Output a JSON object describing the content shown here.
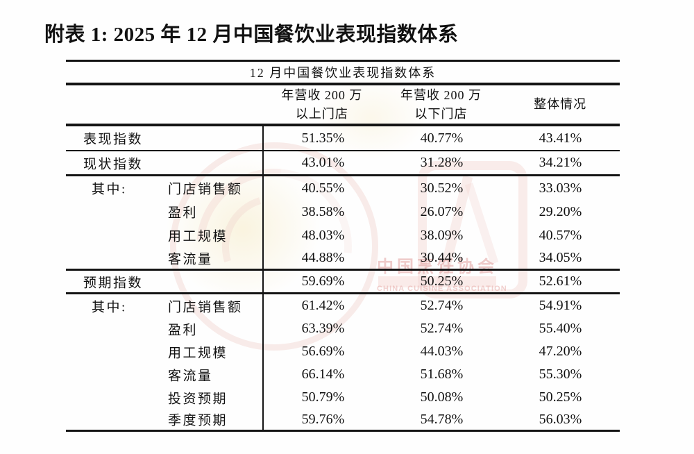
{
  "page": {
    "title": "附表 1: 2025 年 12 月中国餐饮业表现指数体系"
  },
  "watermark": {
    "cn": "中国烹饪协会",
    "en": "CHINA CUISINE ASSOCIATION",
    "color": "#e7a8a5"
  },
  "table": {
    "caption": "12 月中国餐饮业表现指数体系",
    "headers": [
      {
        "line1": "年营收 200 万",
        "line2": "以上门店"
      },
      {
        "line1": "年营收 200 万",
        "line2": "以下门店"
      },
      {
        "line1": "整体情况",
        "line2": ""
      }
    ],
    "rows": [
      {
        "main": "表现指数",
        "sub": "",
        "values": [
          "51.35%",
          "40.77%",
          "43.41%"
        ]
      },
      {
        "main": "现状指数",
        "sub": "",
        "values": [
          "43.01%",
          "31.28%",
          "34.21%"
        ]
      },
      {
        "main": "其中:",
        "sub": "门店销售额",
        "values": [
          "40.55%",
          "30.52%",
          "33.03%"
        ]
      },
      {
        "main": "",
        "sub": "盈利",
        "values": [
          "38.58%",
          "26.07%",
          "29.20%"
        ]
      },
      {
        "main": "",
        "sub": "用工规模",
        "values": [
          "48.03%",
          "38.09%",
          "40.57%"
        ]
      },
      {
        "main": "",
        "sub": "客流量",
        "values": [
          "44.88%",
          "30.44%",
          "34.05%"
        ]
      },
      {
        "main": "预期指数",
        "sub": "",
        "values": [
          "59.69%",
          "50.25%",
          "52.61%"
        ]
      },
      {
        "main": "其中:",
        "sub": "门店销售额",
        "values": [
          "61.42%",
          "52.74%",
          "54.91%"
        ]
      },
      {
        "main": "",
        "sub": "盈利",
        "values": [
          "63.39%",
          "52.74%",
          "55.40%"
        ]
      },
      {
        "main": "",
        "sub": "用工规模",
        "values": [
          "56.69%",
          "44.03%",
          "47.20%"
        ]
      },
      {
        "main": "",
        "sub": "客流量",
        "values": [
          "66.14%",
          "51.68%",
          "55.30%"
        ]
      },
      {
        "main": "",
        "sub": "投资预期",
        "values": [
          "50.79%",
          "50.08%",
          "50.25%"
        ]
      },
      {
        "main": "",
        "sub": "季度预期",
        "values": [
          "59.76%",
          "54.78%",
          "56.03%"
        ]
      }
    ]
  }
}
